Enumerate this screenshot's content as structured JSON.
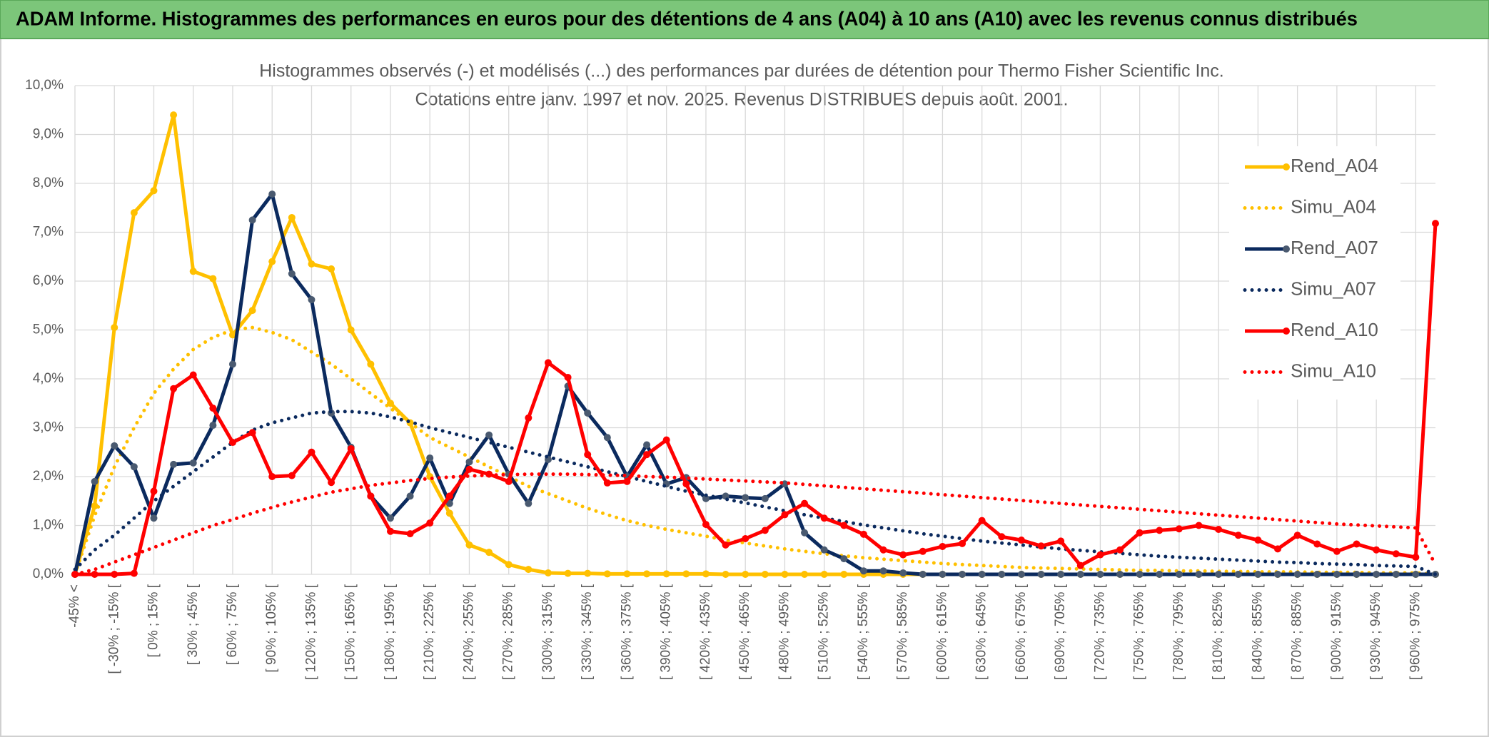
{
  "chart_data": {
    "type": "line",
    "title": "ADAM Informe. Histogrammes des performances en euros pour des détentions de 4 ans (A04) à 10 ans (A10) avec les revenus connus distribués",
    "subtitle": [
      "Histogrammes observés (-) et modélisés (...) des performances par durées de détention pour Thermo Fisher Scientific Inc.",
      "Cotations entre janv. 1997 et nov. 2025. Revenus DISTRIBUES depuis août. 2001."
    ],
    "categories": [
      "-45% <",
      null,
      "[ -30% ; -15% [",
      null,
      "[ 0% ; 15% [",
      null,
      "[ 30% ; 45% [",
      null,
      "[ 60% ; 75% [",
      null,
      "[ 90% ; 105% [",
      null,
      "[ 120% ; 135% [",
      null,
      "[ 150% ; 165% [",
      null,
      "[ 180% ; 195% [",
      null,
      "[ 210% ; 225% [",
      null,
      "[ 240% ; 255% [",
      null,
      "[ 270% ; 285% [",
      null,
      "[ 300% ; 315% [",
      null,
      "[ 330% ; 345% [",
      null,
      "[ 360% ; 375% [",
      null,
      "[ 390% ; 405% [",
      null,
      "[ 420% ; 435% [",
      null,
      "[ 450% ; 465% [",
      null,
      "[ 480% ; 495% [",
      null,
      "[ 510% ; 525% [",
      null,
      "[ 540% ; 555% [",
      null,
      "[ 570% ; 585% [",
      null,
      "[ 600% ; 615% [",
      null,
      "[ 630% ; 645% [",
      null,
      "[ 660% ; 675% [",
      null,
      "[ 690% ; 705% [",
      null,
      "[ 720% ; 735% [",
      null,
      "[ 750% ; 765% [",
      null,
      "[ 780% ; 795% [",
      null,
      "[ 810% ; 825% [",
      null,
      "[ 840% ; 855% [",
      null,
      "[ 870% ; 885% [",
      null,
      "[ 900% ; 915% [",
      null,
      "[ 930% ; 945% [",
      null,
      "[ 960% ; 975% [",
      null
    ],
    "series": [
      {
        "name": "Rend_A04",
        "color": "#ffc000",
        "line_style": "solid",
        "values": [
          0,
          1.4,
          5.05,
          7.4,
          7.85,
          9.4,
          6.2,
          6.05,
          4.9,
          5.4,
          6.4,
          7.3,
          6.35,
          6.25,
          5.0,
          4.3,
          3.5,
          3.1,
          2.0,
          1.25,
          0.6,
          0.45,
          0.2,
          0.1,
          0.03,
          0.02,
          0.02,
          0.01,
          0.01,
          0.01,
          0.01,
          0.01,
          0.01,
          0,
          0,
          0,
          0,
          0,
          0,
          0,
          0,
          0,
          0,
          0,
          0,
          0,
          0,
          0,
          0,
          0,
          0,
          0,
          0,
          0,
          0,
          0,
          0,
          0,
          0,
          0,
          0,
          0,
          0,
          0,
          0,
          0,
          0,
          0,
          0,
          0
        ]
      },
      {
        "name": "Simu_A04",
        "color": "#ffc000",
        "line_style": "dotted",
        "values": [
          0,
          1.2,
          2.2,
          3.0,
          3.7,
          4.2,
          4.6,
          4.85,
          5.0,
          5.05,
          4.95,
          4.8,
          4.55,
          4.3,
          4.0,
          3.7,
          3.4,
          3.1,
          2.8,
          2.6,
          2.4,
          2.2,
          2.0,
          1.8,
          1.65,
          1.5,
          1.35,
          1.22,
          1.1,
          1.0,
          0.92,
          0.85,
          0.78,
          0.7,
          0.64,
          0.58,
          0.52,
          0.47,
          0.42,
          0.38,
          0.34,
          0.31,
          0.28,
          0.25,
          0.22,
          0.2,
          0.18,
          0.16,
          0.14,
          0.13,
          0.12,
          0.11,
          0.1,
          0.09,
          0.08,
          0.08,
          0.07,
          0.07,
          0.06,
          0.06,
          0.05,
          0.05,
          0.05,
          0.04,
          0.04,
          0.04,
          0.03,
          0.03,
          0.03,
          0
        ]
      },
      {
        "name": "Rend_A07",
        "color": "#0b2a5e",
        "marker_color": "#4a5a70",
        "line_style": "solid",
        "values": [
          0,
          1.9,
          2.63,
          2.2,
          1.15,
          2.25,
          2.28,
          3.05,
          4.3,
          7.25,
          7.78,
          6.15,
          5.62,
          3.3,
          2.6,
          1.6,
          1.15,
          1.6,
          2.38,
          1.45,
          2.3,
          2.85,
          2.05,
          1.45,
          2.35,
          3.85,
          3.3,
          2.8,
          2.0,
          2.65,
          1.85,
          1.98,
          1.55,
          1.6,
          1.57,
          1.55,
          1.85,
          0.85,
          0.5,
          0.32,
          0.07,
          0.07,
          0.03,
          0,
          0,
          0,
          0,
          0,
          0,
          0,
          0,
          0,
          0,
          0,
          0,
          0,
          0,
          0,
          0,
          0,
          0,
          0,
          0,
          0,
          0,
          0,
          0,
          0,
          0,
          0
        ]
      },
      {
        "name": "Simu_A07",
        "color": "#0b2a5e",
        "line_style": "dotted",
        "values": [
          0.1,
          0.5,
          0.8,
          1.15,
          1.5,
          1.8,
          2.1,
          2.4,
          2.7,
          2.95,
          3.1,
          3.2,
          3.3,
          3.33,
          3.33,
          3.3,
          3.22,
          3.12,
          3.0,
          2.9,
          2.8,
          2.7,
          2.6,
          2.5,
          2.4,
          2.3,
          2.2,
          2.1,
          2.0,
          1.9,
          1.8,
          1.7,
          1.62,
          1.54,
          1.46,
          1.38,
          1.3,
          1.22,
          1.15,
          1.08,
          1.01,
          0.95,
          0.89,
          0.83,
          0.78,
          0.73,
          0.68,
          0.64,
          0.6,
          0.56,
          0.52,
          0.49,
          0.46,
          0.43,
          0.4,
          0.37,
          0.35,
          0.33,
          0.31,
          0.29,
          0.27,
          0.25,
          0.24,
          0.22,
          0.21,
          0.2,
          0.18,
          0.17,
          0.16,
          0
        ]
      },
      {
        "name": "Rend_A10",
        "color": "#ff0000",
        "line_style": "solid",
        "values": [
          0,
          0,
          0,
          0.02,
          1.7,
          3.8,
          4.08,
          3.4,
          2.7,
          2.9,
          2.0,
          2.02,
          2.5,
          1.88,
          2.57,
          1.6,
          0.88,
          0.83,
          1.05,
          1.6,
          2.15,
          2.05,
          1.9,
          3.2,
          4.33,
          4.03,
          2.45,
          1.87,
          1.9,
          2.45,
          2.75,
          1.85,
          1.02,
          0.6,
          0.73,
          0.9,
          1.22,
          1.45,
          1.15,
          1.0,
          0.82,
          0.5,
          0.4,
          0.47,
          0.57,
          0.63,
          1.1,
          0.77,
          0.7,
          0.58,
          0.68,
          0.18,
          0.4,
          0.5,
          0.85,
          0.9,
          0.93,
          1.0,
          0.92,
          0.8,
          0.7,
          0.52,
          0.8,
          0.62,
          0.47,
          0.62,
          0.5,
          0.42,
          0.35,
          7.18
        ]
      },
      {
        "name": "Simu_A10",
        "color": "#ff0000",
        "line_style": "dotted",
        "values": [
          0,
          0.1,
          0.25,
          0.4,
          0.55,
          0.7,
          0.85,
          1.0,
          1.12,
          1.25,
          1.37,
          1.48,
          1.58,
          1.68,
          1.75,
          1.82,
          1.87,
          1.92,
          1.96,
          1.99,
          2.01,
          2.03,
          2.04,
          2.05,
          2.05,
          2.05,
          2.04,
          2.03,
          2.02,
          2.0,
          1.99,
          1.97,
          1.95,
          1.93,
          1.91,
          1.89,
          1.87,
          1.84,
          1.81,
          1.78,
          1.75,
          1.72,
          1.69,
          1.66,
          1.63,
          1.6,
          1.57,
          1.54,
          1.51,
          1.48,
          1.45,
          1.42,
          1.39,
          1.36,
          1.33,
          1.3,
          1.27,
          1.24,
          1.21,
          1.18,
          1.15,
          1.12,
          1.09,
          1.06,
          1.03,
          1.01,
          0.99,
          0.97,
          0.95,
          0.2
        ]
      }
    ],
    "ylim": [
      0,
      10
    ],
    "yticks": [
      {
        "value": 0,
        "label": "0,0%"
      },
      {
        "value": 1,
        "label": "1,0%"
      },
      {
        "value": 2,
        "label": "2,0%"
      },
      {
        "value": 3,
        "label": "3,0%"
      },
      {
        "value": 4,
        "label": "4,0%"
      },
      {
        "value": 5,
        "label": "5,0%"
      },
      {
        "value": 6,
        "label": "6,0%"
      },
      {
        "value": 7,
        "label": "7,0%"
      },
      {
        "value": 8,
        "label": "8,0%"
      },
      {
        "value": 9,
        "label": "9,0%"
      },
      {
        "value": 10,
        "label": "10,0%"
      }
    ],
    "grid": true,
    "legend_position": "upper right"
  }
}
